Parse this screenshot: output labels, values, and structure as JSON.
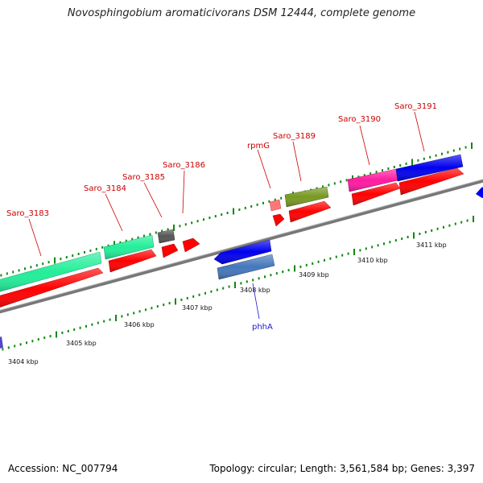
{
  "title": "Novosphingobium aromaticivorans DSM 12444, complete genome",
  "accession_text": "Accession: NC_007794",
  "summary_text": "Topology: circular; Length: 3,561,584 bp; Genes: 3,397",
  "kbp_ticks": [
    "3404 kbp",
    "3405 kbp",
    "3406 kbp",
    "3407 kbp",
    "3408 kbp",
    "3409 kbp",
    "3410 kbp",
    "3411 kbp"
  ],
  "gene_labels": [
    {
      "name": "Saro_3183",
      "color": "#cc0000"
    },
    {
      "name": "Saro_3184",
      "color": "#cc0000"
    },
    {
      "name": "Saro_3185",
      "color": "#cc0000"
    },
    {
      "name": "Saro_3186",
      "color": "#cc0000"
    },
    {
      "name": "rpmG",
      "color": "#cc0000"
    },
    {
      "name": "Saro_3189",
      "color": "#cc0000"
    },
    {
      "name": "Saro_3190",
      "color": "#cc0000"
    },
    {
      "name": "Saro_3191",
      "color": "#cc0000"
    },
    {
      "name": "phhA",
      "color": "#1a1acc"
    }
  ],
  "feature_colors": {
    "cds": "#ff0000",
    "cog_green": "#22ee99",
    "gray": "#555555",
    "blue": "#0000ee",
    "steelblue": "#4477bb",
    "olive": "#779922",
    "pink": "#ff1aa0",
    "lightred": "#ff7777",
    "backbone": "#888888",
    "tick": "#118811"
  }
}
